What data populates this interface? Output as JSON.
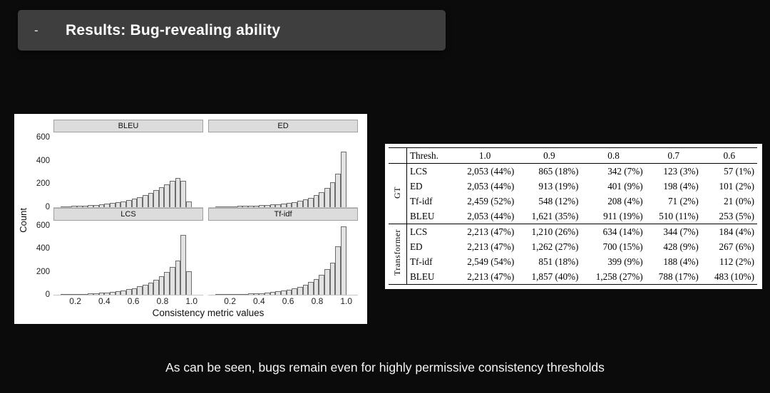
{
  "slide": {
    "header": {
      "dash": "-",
      "title": "Results: Bug-revealing ability"
    },
    "caption": "As can be seen, bugs remain even for highly permissive consistency thresholds"
  },
  "chart_data": {
    "type": "bar",
    "subtype": "faceted-histograms",
    "title": "",
    "xlabel": "Consistency metric values",
    "ylabel": "Count",
    "xlim": [
      0.05,
      1.08
    ],
    "ylim": [
      0,
      650
    ],
    "x_tick_labels": [
      "0.2",
      "0.4",
      "0.6",
      "0.8",
      "1.0"
    ],
    "y_tick_labels": [
      "0",
      "200",
      "400",
      "600"
    ],
    "grid": false,
    "legend": "none",
    "bar_fill": "#e2e2e2",
    "bar_border": "#6c6c6c",
    "facets": [
      {
        "name": "BLEU",
        "bin_start": 0.1,
        "bin_width": 0.0375,
        "counts": [
          4,
          6,
          8,
          10,
          12,
          15,
          18,
          22,
          26,
          32,
          40,
          48,
          58,
          70,
          85,
          100,
          120,
          145,
          170,
          195,
          225,
          250,
          230,
          45
        ]
      },
      {
        "name": "ED",
        "bin_start": 0.1,
        "bin_width": 0.0375,
        "counts": [
          3,
          4,
          5,
          6,
          7,
          8,
          10,
          12,
          14,
          17,
          20,
          24,
          29,
          35,
          42,
          52,
          64,
          80,
          100,
          128,
          165,
          215,
          290,
          480
        ]
      },
      {
        "name": "LCS",
        "bin_start": 0.1,
        "bin_width": 0.0375,
        "counts": [
          3,
          4,
          5,
          7,
          9,
          11,
          14,
          17,
          21,
          26,
          32,
          39,
          48,
          59,
          72,
          88,
          108,
          132,
          162,
          200,
          245,
          300,
          520,
          205
        ]
      },
      {
        "name": "Tf-idf",
        "bin_start": 0.1,
        "bin_width": 0.0375,
        "counts": [
          2,
          3,
          4,
          5,
          6,
          8,
          10,
          12,
          15,
          19,
          24,
          30,
          37,
          46,
          57,
          71,
          89,
          112,
          140,
          176,
          222,
          280,
          420,
          600
        ]
      }
    ]
  },
  "table": {
    "header": [
      "Thresh.",
      "1.0",
      "0.9",
      "0.8",
      "0.7",
      "0.6"
    ],
    "groups": [
      {
        "label": "GT",
        "rows": [
          {
            "metric": "LCS",
            "values": [
              "2,053 (44%)",
              "865 (18%)",
              "342 (7%)",
              "123 (3%)",
              "57 (1%)"
            ]
          },
          {
            "metric": "ED",
            "values": [
              "2,053 (44%)",
              "913 (19%)",
              "401 (9%)",
              "198 (4%)",
              "101 (2%)"
            ]
          },
          {
            "metric": "Tf-idf",
            "values": [
              "2,459 (52%)",
              "548 (12%)",
              "208 (4%)",
              "71 (2%)",
              "21 (0%)"
            ]
          },
          {
            "metric": "BLEU",
            "values": [
              "2,053 (44%)",
              "1,621 (35%)",
              "911 (19%)",
              "510 (11%)",
              "253 (5%)"
            ]
          }
        ]
      },
      {
        "label": "Transformer",
        "rows": [
          {
            "metric": "LCS",
            "values": [
              "2,213 (47%)",
              "1,210 (26%)",
              "634 (14%)",
              "344 (7%)",
              "184 (4%)"
            ]
          },
          {
            "metric": "ED",
            "values": [
              "2,213 (47%)",
              "1,262 (27%)",
              "700 (15%)",
              "428 (9%)",
              "267 (6%)"
            ]
          },
          {
            "metric": "Tf-idf",
            "values": [
              "2,549 (54%)",
              "851 (18%)",
              "399 (9%)",
              "188 (4%)",
              "112 (2%)"
            ]
          },
          {
            "metric": "BLEU",
            "values": [
              "2,213 (47%)",
              "1,857 (40%)",
              "1,258 (27%)",
              "788 (17%)",
              "483 (10%)"
            ]
          }
        ]
      }
    ]
  }
}
